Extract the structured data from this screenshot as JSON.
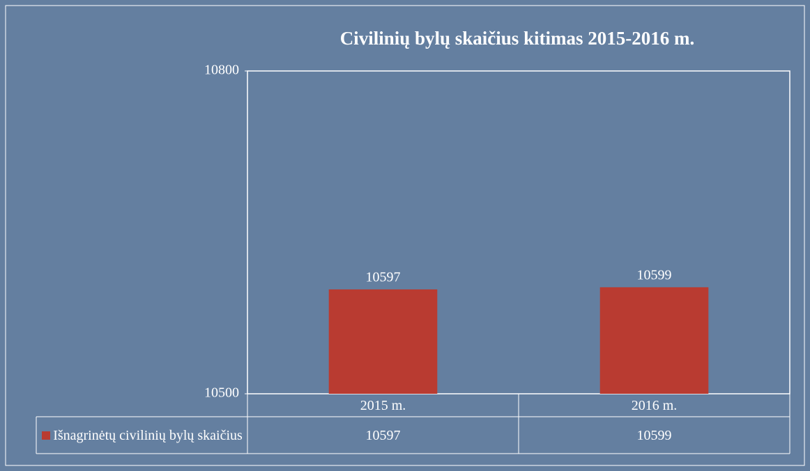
{
  "chart_data": {
    "type": "bar",
    "title": "Civilinių bylų skaičius kitimas 2015-2016 m.",
    "categories": [
      "2015 m.",
      "2016 m."
    ],
    "series": [
      {
        "name": "Išnagrinėtų civilinių bylų skaičius",
        "color": "#b93b31",
        "values": [
          10597,
          10599
        ]
      }
    ],
    "ylim": [
      10500,
      10800
    ],
    "yticks": [
      10500,
      10800
    ],
    "grid": false,
    "data_table": true
  }
}
